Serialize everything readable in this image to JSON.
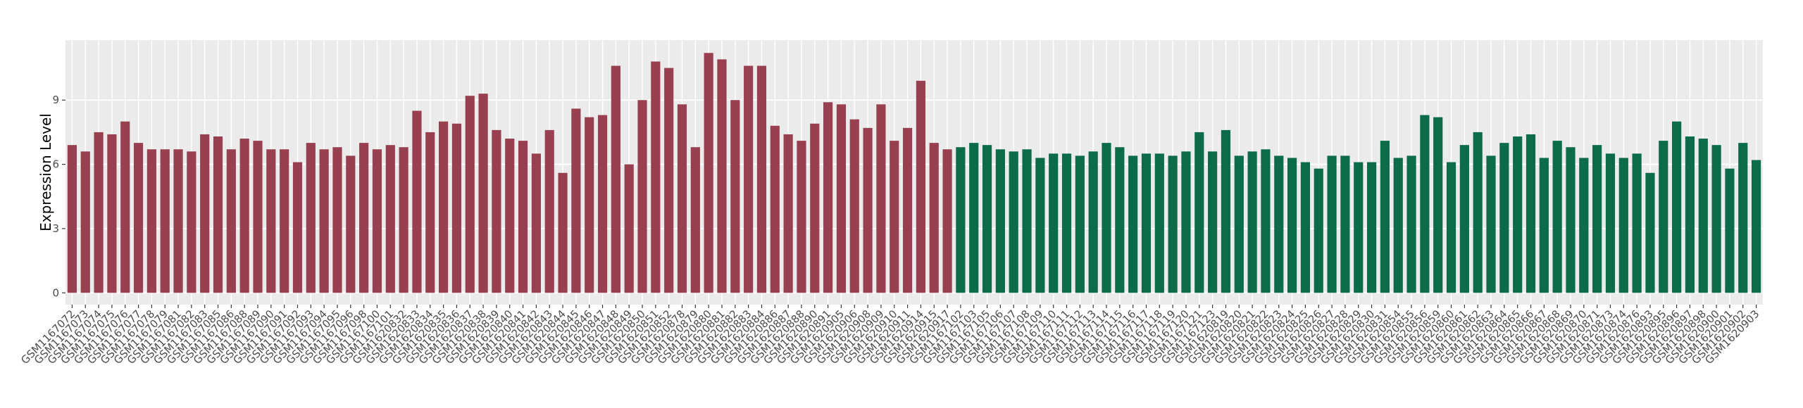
{
  "chart_data": {
    "type": "bar",
    "ylabel": "Expression Level",
    "ylim": [
      -0.55,
      11.8
    ],
    "yticks": [
      0,
      3,
      6,
      9
    ],
    "grid": true,
    "series": [
      {
        "color": "#98404f",
        "categories": [
          "GSM1167072",
          "GSM1167073",
          "GSM1167074",
          "GSM1167075",
          "GSM1167076",
          "GSM1167077",
          "GSM1167078",
          "GSM1167079",
          "GSM1167081",
          "GSM1167082",
          "GSM1167083",
          "GSM1167085",
          "GSM1167086",
          "GSM1167088",
          "GSM1167089",
          "GSM1167090",
          "GSM1167091",
          "GSM1167092",
          "GSM1167093",
          "GSM1167094",
          "GSM1167095",
          "GSM1167096",
          "GSM1167098",
          "GSM1167100",
          "GSM1167101",
          "GSM1620832",
          "GSM1620833",
          "GSM1620834",
          "GSM1620835",
          "GSM1620836",
          "GSM1620837",
          "GSM1620838",
          "GSM1620839",
          "GSM1620840",
          "GSM1620841",
          "GSM1620842",
          "GSM1620843",
          "GSM1620844",
          "GSM1620845",
          "GSM1620846",
          "GSM1620847",
          "GSM1620848",
          "GSM1620849",
          "GSM1620850",
          "GSM1620851",
          "GSM1620852",
          "GSM1620878",
          "GSM1620879",
          "GSM1620880",
          "GSM1620881",
          "GSM1620882",
          "GSM1620883",
          "GSM1620884",
          "GSM1620886",
          "GSM1620887",
          "GSM1620888",
          "GSM1620890",
          "GSM1620891",
          "GSM1620905",
          "GSM1620906",
          "GSM1620908",
          "GSM1620909",
          "GSM1620910",
          "GSM1620911",
          "GSM1620914",
          "GSM1620915",
          "GSM1620917"
        ],
        "values": [
          6.9,
          6.6,
          7.5,
          7.4,
          8.0,
          7.0,
          6.7,
          6.7,
          6.7,
          6.6,
          7.4,
          7.3,
          6.7,
          7.2,
          7.1,
          6.7,
          6.7,
          6.1,
          7.0,
          6.7,
          6.8,
          6.4,
          7.0,
          6.7,
          6.9,
          6.8,
          8.5,
          7.5,
          8.0,
          7.9,
          9.2,
          9.3,
          7.6,
          7.2,
          7.1,
          6.5,
          7.6,
          5.6,
          8.6,
          8.2,
          8.3,
          10.6,
          6.0,
          9.0,
          10.8,
          10.5,
          8.8,
          6.8,
          11.2,
          10.9,
          9.0,
          10.6,
          10.6,
          7.8,
          7.4,
          7.1,
          7.9,
          8.9,
          8.8,
          8.1,
          7.7,
          8.8,
          7.1,
          7.7,
          9.9,
          7.0,
          6.7
        ]
      },
      {
        "color": "#0c6b48",
        "categories": [
          "GSM1167102",
          "GSM1167103",
          "GSM1167105",
          "GSM1167106",
          "GSM1167107",
          "GSM1167108",
          "GSM1167109",
          "GSM1167110",
          "GSM1167111",
          "GSM1167112",
          "GSM1167113",
          "GSM1167114",
          "GSM1167115",
          "GSM1167116",
          "GSM1167117",
          "GSM1167118",
          "GSM1167119",
          "GSM1167120",
          "GSM1167121",
          "GSM1167123",
          "GSM1620819",
          "GSM1620820",
          "GSM1620821",
          "GSM1620822",
          "GSM1620823",
          "GSM1620824",
          "GSM1620825",
          "GSM1620826",
          "GSM1620827",
          "GSM1620828",
          "GSM1620829",
          "GSM1620830",
          "GSM1620831",
          "GSM1620854",
          "GSM1620855",
          "GSM1620856",
          "GSM1620859",
          "GSM1620860",
          "GSM1620861",
          "GSM1620862",
          "GSM1620863",
          "GSM1620864",
          "GSM1620865",
          "GSM1620866",
          "GSM1620867",
          "GSM1620868",
          "GSM1620869",
          "GSM1620870",
          "GSM1620871",
          "GSM1620873",
          "GSM1620874",
          "GSM1620876",
          "GSM1620893",
          "GSM1620895",
          "GSM1620896",
          "GSM1620897",
          "GSM1620898",
          "GSM1620900",
          "GSM1620901",
          "GSM1620902",
          "GSM1620903"
        ],
        "values": [
          6.8,
          7.0,
          6.9,
          6.7,
          6.6,
          6.7,
          6.3,
          6.5,
          6.5,
          6.4,
          6.6,
          7.0,
          6.8,
          6.4,
          6.5,
          6.5,
          6.4,
          6.6,
          7.5,
          6.6,
          7.6,
          6.4,
          6.6,
          6.7,
          6.4,
          6.3,
          6.1,
          5.8,
          6.4,
          6.4,
          6.1,
          6.1,
          7.1,
          6.3,
          6.4,
          8.3,
          8.2,
          6.1,
          6.9,
          7.5,
          6.4,
          7.0,
          7.3,
          7.4,
          6.3,
          7.1,
          6.8,
          6.3,
          6.9,
          6.5,
          6.3,
          6.5,
          5.6,
          7.1,
          8.0,
          7.3,
          7.2,
          6.9,
          5.8,
          7.0,
          6.2
        ]
      }
    ]
  }
}
